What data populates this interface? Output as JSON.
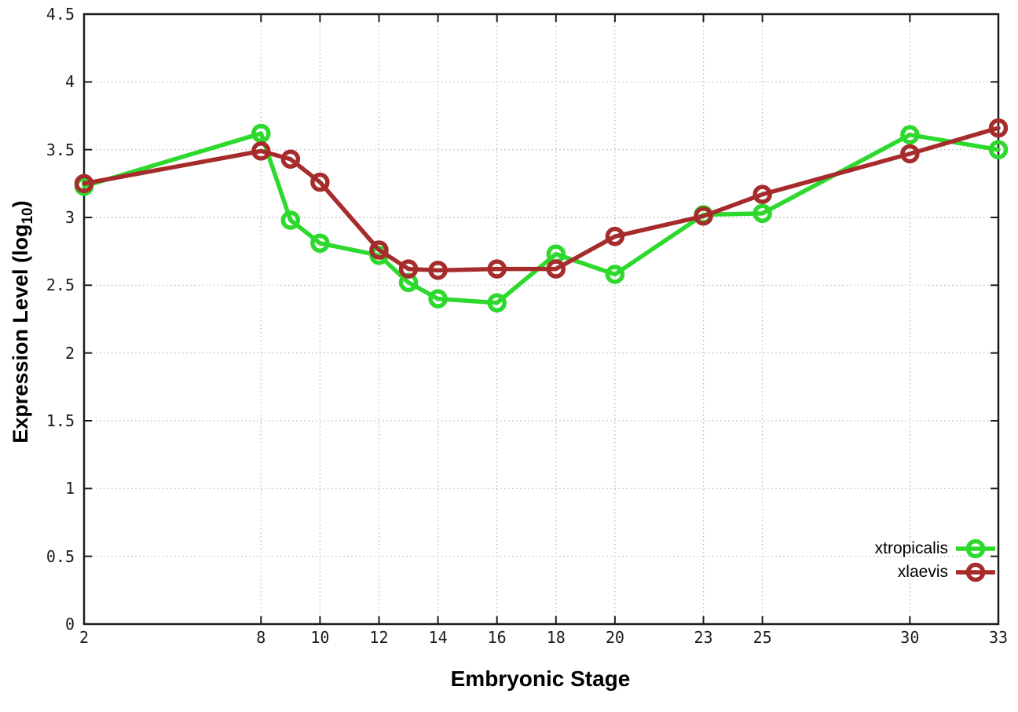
{
  "figure": {
    "background_color": "#ffffff",
    "border_color": "#1c1c1c",
    "grid_color": "#b5b5b5",
    "tick_label_color": "#1c1c1c"
  },
  "chart_data": {
    "type": "line",
    "title": "",
    "xlabel": "Embryonic Stage",
    "ylabel": "Expression Level (log10)",
    "ylabel_parts": {
      "main": "Expression Level (log",
      "sub": "10",
      "end": ")"
    },
    "xlim": [
      2,
      33
    ],
    "ylim": [
      0,
      4.5
    ],
    "x_ticks": [
      2,
      8,
      10,
      12,
      14,
      16,
      18,
      20,
      23,
      25,
      30,
      33
    ],
    "x_tick_labels": [
      "2",
      "8",
      "10",
      "12",
      "14",
      "16",
      "18",
      "20",
      "23",
      "25",
      "30",
      "33"
    ],
    "y_ticks": [
      0,
      0.5,
      1,
      1.5,
      2,
      2.5,
      3,
      3.5,
      4,
      4.5
    ],
    "y_tick_labels": [
      "0",
      "0.5",
      "1",
      "1.5",
      "2",
      "2.5",
      "3",
      "3.5",
      "4",
      "4.5"
    ],
    "grid": true,
    "legend_position": "bottom-right",
    "marker": "open-circle",
    "x": [
      2,
      8,
      9,
      10,
      12,
      13,
      14,
      16,
      18,
      20,
      23,
      25,
      30,
      33
    ],
    "series": [
      {
        "name": "xtropicalis",
        "color": "#2dd92d",
        "values": [
          3.23,
          3.62,
          2.98,
          2.81,
          2.72,
          2.52,
          2.4,
          2.37,
          2.73,
          2.58,
          3.02,
          3.03,
          3.61,
          3.5
        ]
      },
      {
        "name": "xlaevis",
        "color": "#a62c2c",
        "values": [
          3.25,
          3.49,
          3.43,
          3.26,
          2.76,
          2.62,
          2.61,
          2.62,
          2.62,
          2.86,
          3.01,
          3.17,
          3.47,
          3.66
        ]
      }
    ]
  }
}
